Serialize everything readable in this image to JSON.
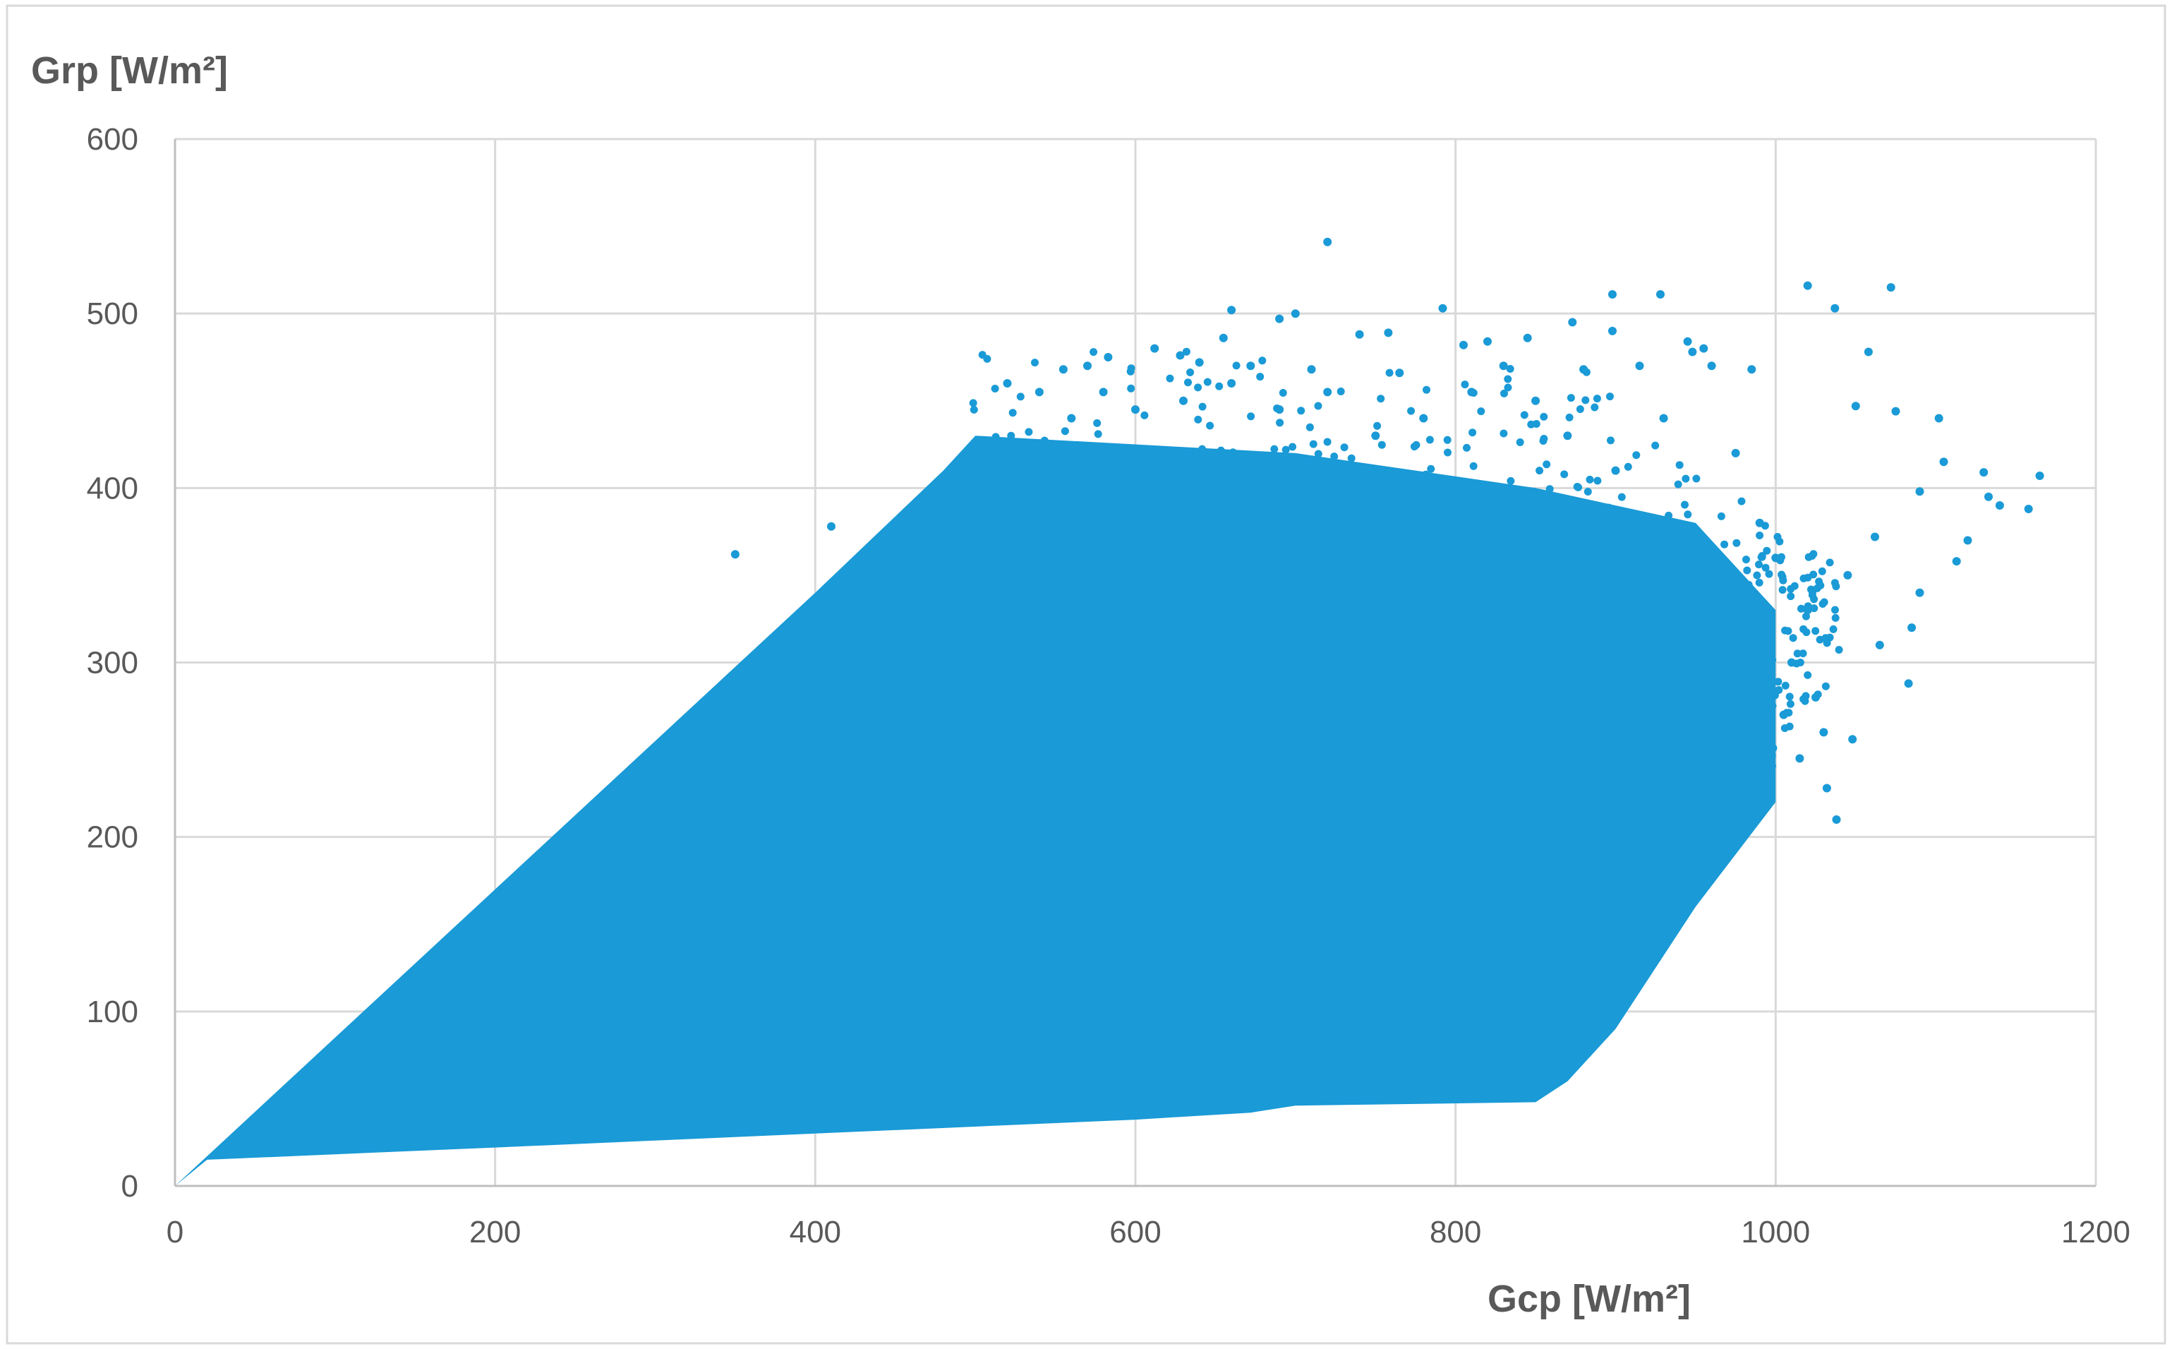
{
  "chart_data": {
    "type": "scatter",
    "title": "",
    "xlabel": "Gcp [W/m²]",
    "ylabel": "Grp [W/m²]",
    "xlim": [
      0,
      1200
    ],
    "ylim": [
      0,
      600
    ],
    "x_ticks": [
      "0",
      "200",
      "400",
      "600",
      "800",
      "1000",
      "1200"
    ],
    "y_ticks": [
      "0",
      "100",
      "200",
      "300",
      "400",
      "500",
      "600"
    ],
    "grid": true,
    "legend": "none",
    "point_color": "#1a9ad6",
    "dense_region": {
      "upper_edge": [
        [
          0,
          0
        ],
        [
          100,
          85
        ],
        [
          200,
          170
        ],
        [
          300,
          255
        ],
        [
          400,
          340
        ],
        [
          480,
          410
        ],
        [
          500,
          430
        ]
      ],
      "lower_edge": [
        [
          0,
          0
        ],
        [
          20,
          15
        ],
        [
          200,
          22
        ],
        [
          400,
          30
        ],
        [
          600,
          38
        ],
        [
          672,
          42
        ],
        [
          700,
          46
        ],
        [
          850,
          48
        ],
        [
          870,
          60
        ],
        [
          900,
          90
        ],
        [
          950,
          160
        ],
        [
          1000,
          220
        ]
      ],
      "right_edge": [
        [
          500,
          430
        ],
        [
          700,
          420
        ],
        [
          850,
          400
        ],
        [
          950,
          380
        ],
        [
          1000,
          330
        ],
        [
          1000,
          220
        ]
      ]
    },
    "points": [
      [
        720,
        541
      ],
      [
        1020,
        516
      ],
      [
        1072,
        515
      ],
      [
        898,
        511
      ],
      [
        928,
        511
      ],
      [
        1037,
        503
      ],
      [
        660,
        502
      ],
      [
        792,
        503
      ],
      [
        700,
        500
      ],
      [
        690,
        497
      ],
      [
        873,
        495
      ],
      [
        898,
        490
      ],
      [
        740,
        488
      ],
      [
        758,
        489
      ],
      [
        1058,
        478
      ],
      [
        805,
        482
      ],
      [
        612,
        480
      ],
      [
        628,
        476
      ],
      [
        945,
        484
      ],
      [
        955,
        480
      ],
      [
        948,
        478
      ],
      [
        845,
        486
      ],
      [
        820,
        484
      ],
      [
        655,
        486
      ],
      [
        583,
        475
      ],
      [
        555,
        468
      ],
      [
        570,
        470
      ],
      [
        640,
        472
      ],
      [
        672,
        470
      ],
      [
        710,
        468
      ],
      [
        765,
        466
      ],
      [
        830,
        470
      ],
      [
        880,
        468
      ],
      [
        915,
        470
      ],
      [
        960,
        470
      ],
      [
        985,
        468
      ],
      [
        1050,
        447
      ],
      [
        1075,
        444
      ],
      [
        1102,
        440
      ],
      [
        1165,
        407
      ],
      [
        1130,
        409
      ],
      [
        1158,
        388
      ],
      [
        1133,
        395
      ],
      [
        1120,
        370
      ],
      [
        1113,
        358
      ],
      [
        1090,
        340
      ],
      [
        1085,
        320
      ],
      [
        1065,
        310
      ],
      [
        1083,
        288
      ],
      [
        1048,
        256
      ],
      [
        1032,
        228
      ],
      [
        1038,
        210
      ],
      [
        605,
        406
      ],
      [
        350,
        362
      ],
      [
        410,
        378
      ],
      [
        520,
        460
      ],
      [
        540,
        455
      ],
      [
        1010,
        300
      ],
      [
        1020,
        330
      ],
      [
        1045,
        350
      ],
      [
        1062,
        372
      ],
      [
        1090,
        398
      ],
      [
        1105,
        415
      ],
      [
        1140,
        390
      ],
      [
        1000,
        360
      ],
      [
        990,
        380
      ],
      [
        975,
        420
      ],
      [
        930,
        440
      ],
      [
        900,
        410
      ],
      [
        870,
        430
      ],
      [
        850,
        450
      ],
      [
        810,
        455
      ],
      [
        780,
        440
      ],
      [
        750,
        430
      ],
      [
        720,
        455
      ],
      [
        690,
        445
      ],
      [
        660,
        460
      ],
      [
        630,
        450
      ],
      [
        600,
        445
      ],
      [
        580,
        455
      ],
      [
        560,
        440
      ],
      [
        950,
        300
      ],
      [
        1025,
        280
      ],
      [
        1030,
        260
      ],
      [
        1015,
        245
      ],
      [
        985,
        240
      ],
      [
        1005,
        270
      ]
    ]
  }
}
